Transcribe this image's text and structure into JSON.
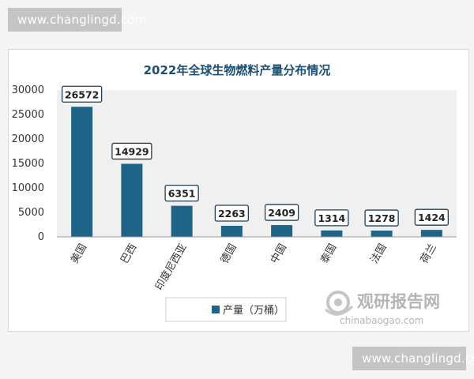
{
  "watermarks": {
    "top": "www.changlingd.com",
    "bottom": "www.changlingd.com"
  },
  "logo": {
    "cn": "观研报告网",
    "en": "chinabaogao.com"
  },
  "colors": {
    "bar": "#1f6386",
    "title": "#1c4f74",
    "plot_bg": "#f0f0f0"
  },
  "chart_data": {
    "type": "bar",
    "title": "2022年全球生物燃料产量分布情况",
    "categories": [
      "美国",
      "巴西",
      "印度尼西亚",
      "德国",
      "中国",
      "泰国",
      "法国",
      "荷兰"
    ],
    "series": [
      {
        "name": "产量（万桶）",
        "values": [
          26572,
          14929,
          6351,
          2263,
          2409,
          1314,
          1278,
          1424
        ]
      }
    ],
    "data_labels": [
      "26572",
      "14929",
      "6351",
      "2263",
      "2409",
      "1314",
      "1278",
      "1424"
    ],
    "ylim": [
      0,
      30000
    ],
    "yticks": [
      0,
      5000,
      10000,
      15000,
      20000,
      25000,
      30000
    ],
    "ytick_labels": [
      "0",
      "5000",
      "10000",
      "15000",
      "20000",
      "25000",
      "30000"
    ],
    "xlabel": "",
    "ylabel": "",
    "grid": false,
    "legend_position": "bottom"
  }
}
